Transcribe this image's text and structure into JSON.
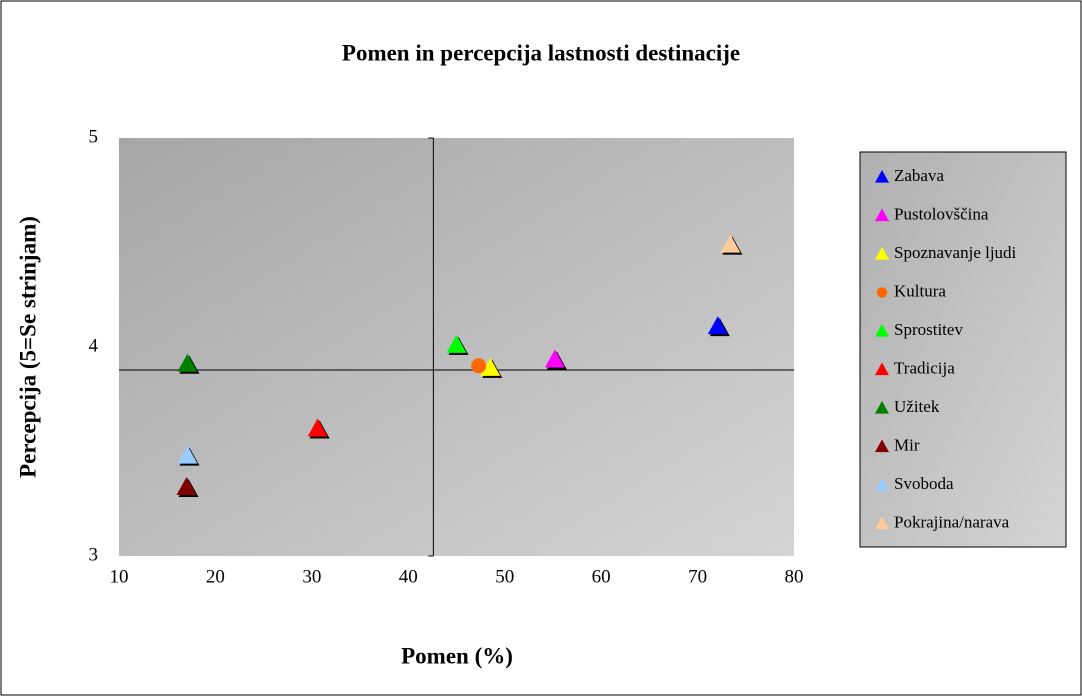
{
  "chart_data": {
    "type": "scatter",
    "title": "Pomen in percepcija lastnosti destinacije",
    "x_label": "Pomen (%)",
    "y_label": "Percepcija (5=Se strinjam)",
    "xlim": [
      10,
      80
    ],
    "xticks": [
      10,
      20,
      30,
      40,
      50,
      60,
      70,
      80
    ],
    "ylim": [
      3,
      5
    ],
    "yticks": [
      3,
      4,
      5
    ],
    "reference_x": 42.6,
    "reference_y": 3.89,
    "legend": "right",
    "series": [
      {
        "name": "Zabava",
        "color": "#0000ff",
        "marker": "triangle",
        "x": [
          72.1
        ],
        "values": [
          4.1
        ]
      },
      {
        "name": "Pustolovščina",
        "color": "#ff00ff",
        "marker": "triangle",
        "x": [
          55.2
        ],
        "values": [
          3.94
        ]
      },
      {
        "name": "Spoznavanje ljudi",
        "color": "#ffff00",
        "marker": "triangle",
        "x": [
          48.5
        ],
        "values": [
          3.9
        ]
      },
      {
        "name": "Kultura",
        "color": "#ff6600",
        "marker": "circle",
        "x": [
          47.3
        ],
        "values": [
          3.91
        ]
      },
      {
        "name": "Sprostitev",
        "color": "#00ff00",
        "marker": "triangle",
        "x": [
          45.0
        ],
        "values": [
          4.01
        ]
      },
      {
        "name": "Tradicija",
        "color": "#ff0000",
        "marker": "triangle",
        "x": [
          30.6
        ],
        "values": [
          3.61
        ]
      },
      {
        "name": "Užitek",
        "color": "#008000",
        "marker": "triangle",
        "x": [
          17.1
        ],
        "values": [
          3.92
        ]
      },
      {
        "name": "Mir",
        "color": "#800000",
        "marker": "triangle",
        "x": [
          17.0
        ],
        "values": [
          3.33
        ]
      },
      {
        "name": "Svoboda",
        "color": "#99ccff",
        "marker": "triangle",
        "x": [
          17.1
        ],
        "values": [
          3.48
        ]
      },
      {
        "name": "Pokrajina/narava",
        "color": "#ffcc99",
        "marker": "triangle",
        "x": [
          73.4
        ],
        "values": [
          4.49
        ]
      }
    ]
  }
}
